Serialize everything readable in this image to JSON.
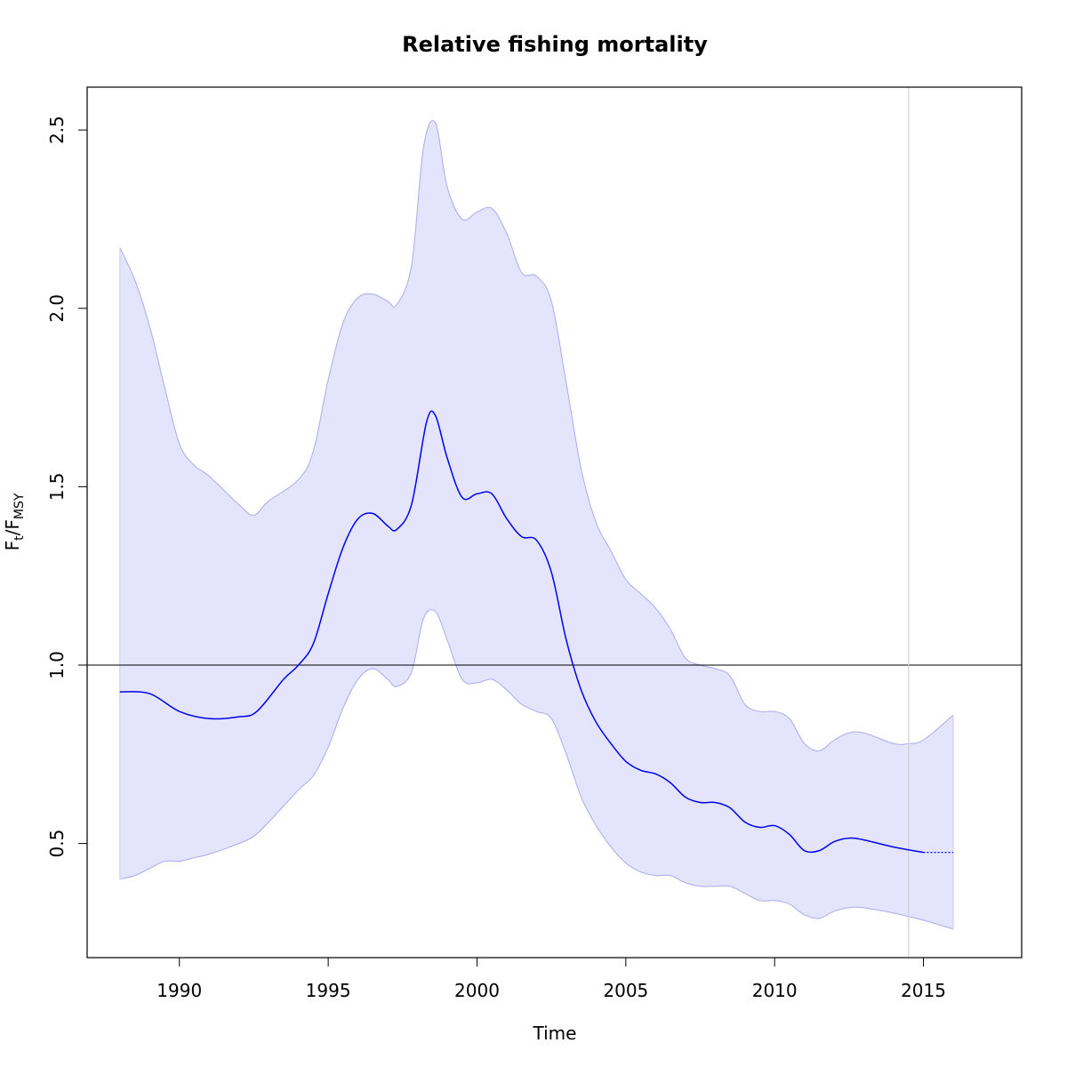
{
  "chart_data": {
    "type": "line",
    "title": "Relative fishing mortality",
    "xlabel": "Time",
    "ylabel": {
      "main": "F",
      "sub1": "t",
      "sep": "/F",
      "sub2": "MSY"
    },
    "xlim": [
      1986.9,
      2018.3
    ],
    "ylim": [
      0.18,
      2.62
    ],
    "x_ticks": [
      1990,
      1995,
      2000,
      2005,
      2010,
      2015
    ],
    "y_ticks": [
      0.5,
      1.0,
      1.5,
      2.0,
      2.5
    ],
    "y_tick_labels": [
      "0.5",
      "1.0",
      "1.5",
      "2.0",
      "2.5"
    ],
    "reference_hline": 1.0,
    "reference_vline": 2014.5,
    "series": [
      {
        "role": "estimate",
        "color": "#0000ee",
        "x": [
          1988.0,
          1989.0,
          1990.0,
          1991.0,
          1992.0,
          1992.6,
          1993.5,
          1994.0,
          1994.5,
          1995.0,
          1995.5,
          1996.0,
          1996.5,
          1997.0,
          1997.3,
          1997.8,
          1998.3,
          1998.6,
          1999.0,
          1999.5,
          2000.0,
          2000.5,
          2001.0,
          2001.5,
          2002.0,
          2002.5,
          2003.0,
          2003.5,
          2004.0,
          2004.5,
          2005.0,
          2005.5,
          2006.0,
          2006.5,
          2007.0,
          2007.5,
          2008.0,
          2008.5,
          2009.0,
          2009.5,
          2010.0,
          2010.5,
          2011.0,
          2011.5,
          2012.0,
          2012.5,
          2013.0,
          2014.0,
          2015.0
        ],
        "y": [
          0.925,
          0.92,
          0.87,
          0.85,
          0.855,
          0.87,
          0.96,
          1.0,
          1.06,
          1.2,
          1.33,
          1.41,
          1.425,
          1.39,
          1.38,
          1.45,
          1.68,
          1.7,
          1.58,
          1.47,
          1.48,
          1.48,
          1.41,
          1.36,
          1.35,
          1.26,
          1.07,
          0.93,
          0.84,
          0.78,
          0.73,
          0.705,
          0.695,
          0.67,
          0.63,
          0.615,
          0.615,
          0.6,
          0.56,
          0.545,
          0.55,
          0.525,
          0.48,
          0.48,
          0.505,
          0.515,
          0.51,
          0.49,
          0.475
        ]
      },
      {
        "role": "forecast",
        "color": "#0000ee",
        "x": [
          2015.0,
          2016.0
        ],
        "y": [
          0.475,
          0.475
        ]
      }
    ],
    "confidence_band": {
      "color": "#e4e4fc",
      "x": [
        1988.0,
        1988.5,
        1989.0,
        1989.5,
        1990.0,
        1990.5,
        1991.0,
        1992.0,
        1992.5,
        1993.0,
        1994.0,
        1994.5,
        1995.0,
        1995.5,
        1996.0,
        1996.5,
        1997.0,
        1997.3,
        1997.8,
        1998.2,
        1998.6,
        1999.0,
        1999.5,
        2000.0,
        2000.5,
        2001.0,
        2001.5,
        2002.0,
        2002.5,
        2003.0,
        2003.5,
        2004.0,
        2004.5,
        2005.0,
        2005.5,
        2006.0,
        2006.5,
        2007.0,
        2007.5,
        2008.0,
        2008.5,
        2009.0,
        2009.5,
        2010.0,
        2010.5,
        2011.0,
        2011.5,
        2012.0,
        2012.5,
        2013.0,
        2014.0,
        2014.5,
        2015.0,
        2016.0
      ],
      "upper": [
        2.17,
        2.08,
        1.95,
        1.78,
        1.62,
        1.56,
        1.53,
        1.45,
        1.42,
        1.46,
        1.52,
        1.6,
        1.8,
        1.96,
        2.03,
        2.04,
        2.02,
        2.01,
        2.12,
        2.45,
        2.52,
        2.34,
        2.25,
        2.27,
        2.28,
        2.21,
        2.1,
        2.09,
        2.02,
        1.79,
        1.55,
        1.4,
        1.32,
        1.24,
        1.2,
        1.16,
        1.1,
        1.02,
        1.0,
        0.99,
        0.97,
        0.89,
        0.87,
        0.87,
        0.85,
        0.78,
        0.76,
        0.79,
        0.81,
        0.81,
        0.78,
        0.78,
        0.79,
        0.86
      ],
      "lower": [
        0.4,
        0.41,
        0.43,
        0.45,
        0.45,
        0.46,
        0.47,
        0.5,
        0.52,
        0.56,
        0.65,
        0.69,
        0.77,
        0.88,
        0.96,
        0.99,
        0.96,
        0.94,
        0.98,
        1.13,
        1.15,
        1.07,
        0.96,
        0.95,
        0.96,
        0.93,
        0.89,
        0.87,
        0.85,
        0.75,
        0.63,
        0.55,
        0.49,
        0.445,
        0.42,
        0.41,
        0.41,
        0.39,
        0.38,
        0.38,
        0.38,
        0.36,
        0.34,
        0.34,
        0.33,
        0.3,
        0.29,
        0.31,
        0.32,
        0.32,
        0.305,
        0.295,
        0.285,
        0.26
      ]
    },
    "grid": false,
    "legend": "none"
  }
}
